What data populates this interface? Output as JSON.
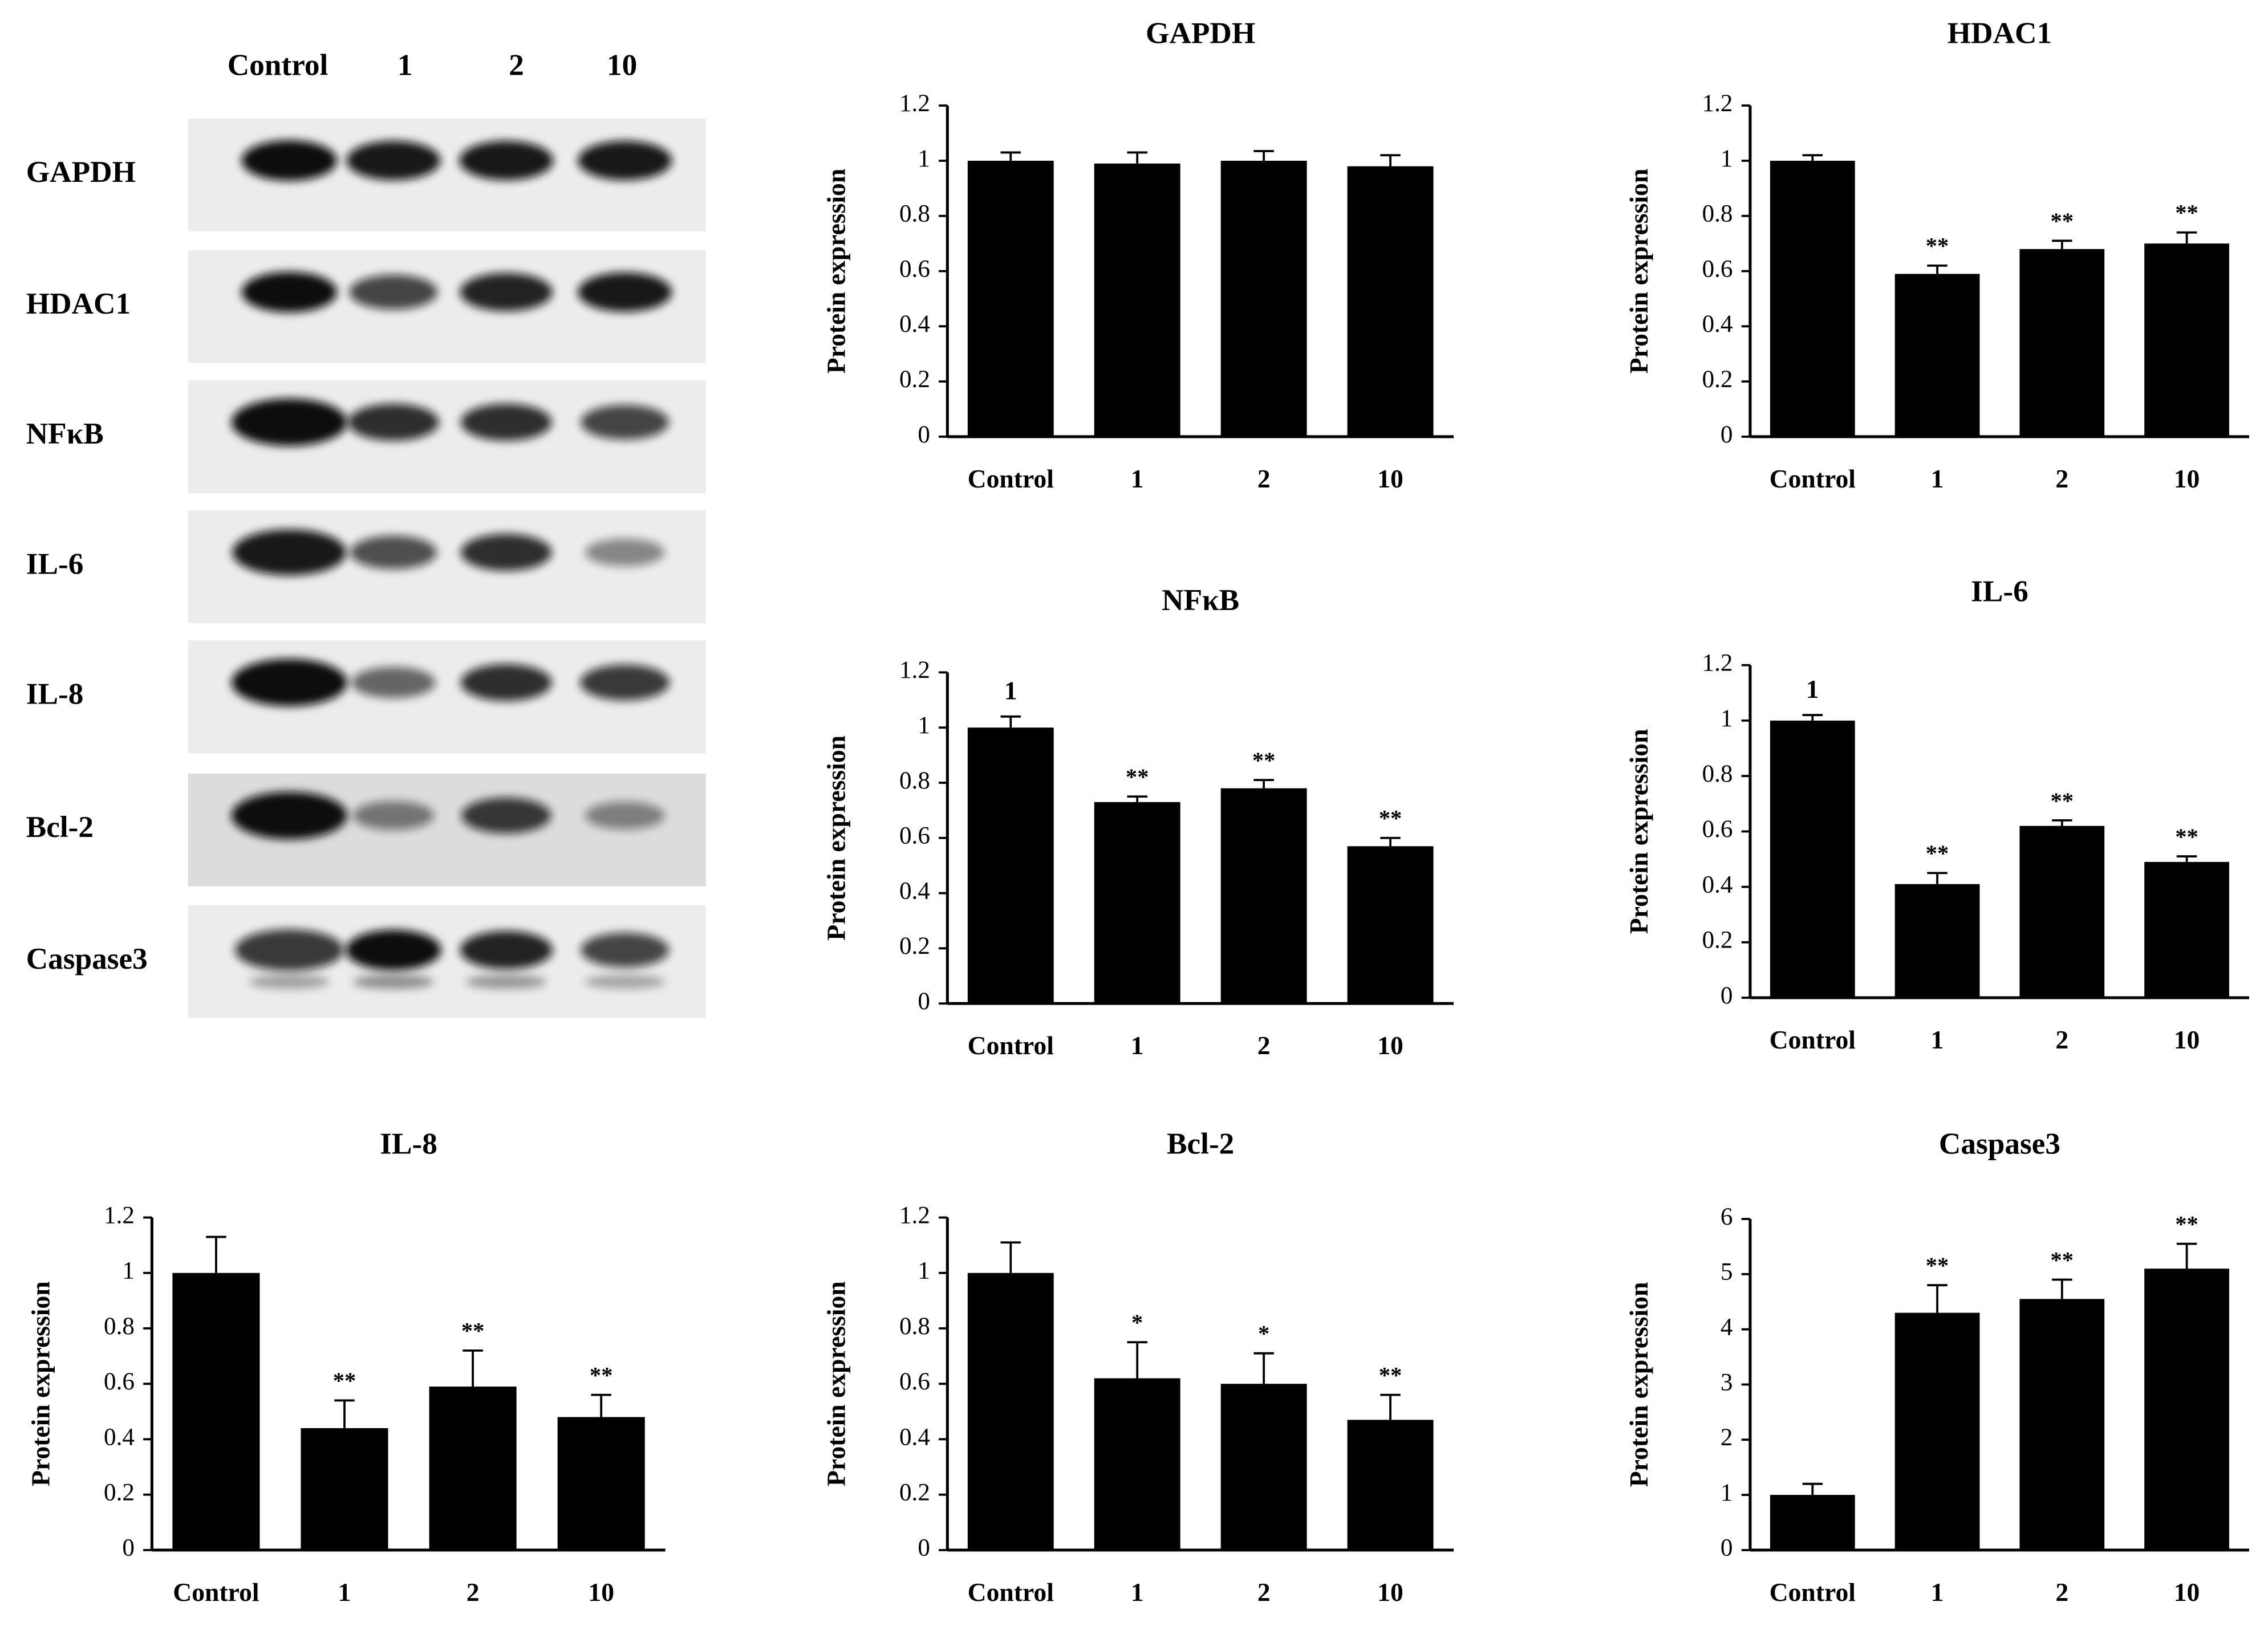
{
  "blot": {
    "lanes": [
      "Control",
      "1",
      "2",
      "10"
    ],
    "proteins": [
      "GAPDH",
      "HDAC1",
      "NFκB",
      "IL-6",
      "IL-8",
      "Bcl-2",
      "Caspase3"
    ]
  },
  "chart_data": [
    {
      "type": "bar",
      "title": "GAPDH",
      "y_label": "Protein expression",
      "categories": [
        "Control",
        "1",
        "2",
        "10"
      ],
      "values": [
        1.0,
        0.99,
        1.0,
        0.98
      ],
      "errors": [
        0.03,
        0.04,
        0.035,
        0.04
      ],
      "annotations": [
        null,
        null,
        null,
        null
      ],
      "ylim": [
        0,
        1.2
      ],
      "yticks": [
        0,
        0.2,
        0.4,
        0.6,
        0.8,
        1,
        1.2
      ],
      "color": "#000000"
    },
    {
      "type": "bar",
      "title": "HDAC1",
      "y_label": "Protein expression",
      "categories": [
        "Control",
        "1",
        "2",
        "10"
      ],
      "values": [
        1.0,
        0.59,
        0.68,
        0.7
      ],
      "errors": [
        0.02,
        0.03,
        0.03,
        0.04
      ],
      "annotations": [
        null,
        "**",
        "**",
        "**"
      ],
      "ylim": [
        0,
        1.2
      ],
      "yticks": [
        0,
        0.2,
        0.4,
        0.6,
        0.8,
        1,
        1.2
      ],
      "color": "#000000"
    },
    {
      "type": "bar",
      "title": "NFκB",
      "y_label": "Protein expression",
      "categories": [
        "Control",
        "1",
        "2",
        "10"
      ],
      "values": [
        1.0,
        0.73,
        0.78,
        0.57
      ],
      "errors": [
        0.04,
        0.02,
        0.03,
        0.03
      ],
      "annotations": [
        "1",
        "**",
        "**",
        "**"
      ],
      "ylim": [
        0,
        1.2
      ],
      "yticks": [
        0,
        0.2,
        0.4,
        0.6,
        0.8,
        1,
        1.2
      ],
      "color": "#000000"
    },
    {
      "type": "bar",
      "title": "IL-6",
      "y_label": "Protein expression",
      "categories": [
        "Control",
        "1",
        "2",
        "10"
      ],
      "values": [
        1.0,
        0.41,
        0.62,
        0.49
      ],
      "errors": [
        0.02,
        0.04,
        0.02,
        0.02
      ],
      "annotations": [
        "1",
        "**",
        "**",
        "**"
      ],
      "ylim": [
        0,
        1.2
      ],
      "yticks": [
        0,
        0.2,
        0.4,
        0.6,
        0.8,
        1,
        1.2
      ],
      "color": "#000000"
    },
    {
      "type": "bar",
      "title": "IL-8",
      "y_label": "Protein expression",
      "categories": [
        "Control",
        "1",
        "2",
        "10"
      ],
      "values": [
        1.0,
        0.44,
        0.59,
        0.48
      ],
      "errors": [
        0.13,
        0.1,
        0.13,
        0.08
      ],
      "annotations": [
        null,
        "**",
        "**",
        "**"
      ],
      "ylim": [
        0,
        1.2
      ],
      "yticks": [
        0,
        0.2,
        0.4,
        0.6,
        0.8,
        1,
        1.2
      ],
      "color": "#000000"
    },
    {
      "type": "bar",
      "title": "Bcl-2",
      "y_label": "Protein expression",
      "categories": [
        "Control",
        "1",
        "2",
        "10"
      ],
      "values": [
        1.0,
        0.62,
        0.6,
        0.47
      ],
      "errors": [
        0.11,
        0.13,
        0.11,
        0.09
      ],
      "annotations": [
        null,
        "*",
        "*",
        "**"
      ],
      "ylim": [
        0,
        1.2
      ],
      "yticks": [
        0,
        0.2,
        0.4,
        0.6,
        0.8,
        1,
        1.2
      ],
      "color": "#000000"
    },
    {
      "type": "bar",
      "title": "Caspase3",
      "y_label": "Protein expression",
      "categories": [
        "Control",
        "1",
        "2",
        "10"
      ],
      "values": [
        1.0,
        4.3,
        4.55,
        5.1
      ],
      "errors": [
        0.2,
        0.5,
        0.35,
        0.45
      ],
      "annotations": [
        null,
        "**",
        "**",
        "**"
      ],
      "ylim": [
        0,
        6
      ],
      "yticks": [
        0,
        1,
        2,
        3,
        4,
        5,
        6
      ],
      "color": "#000000"
    }
  ]
}
